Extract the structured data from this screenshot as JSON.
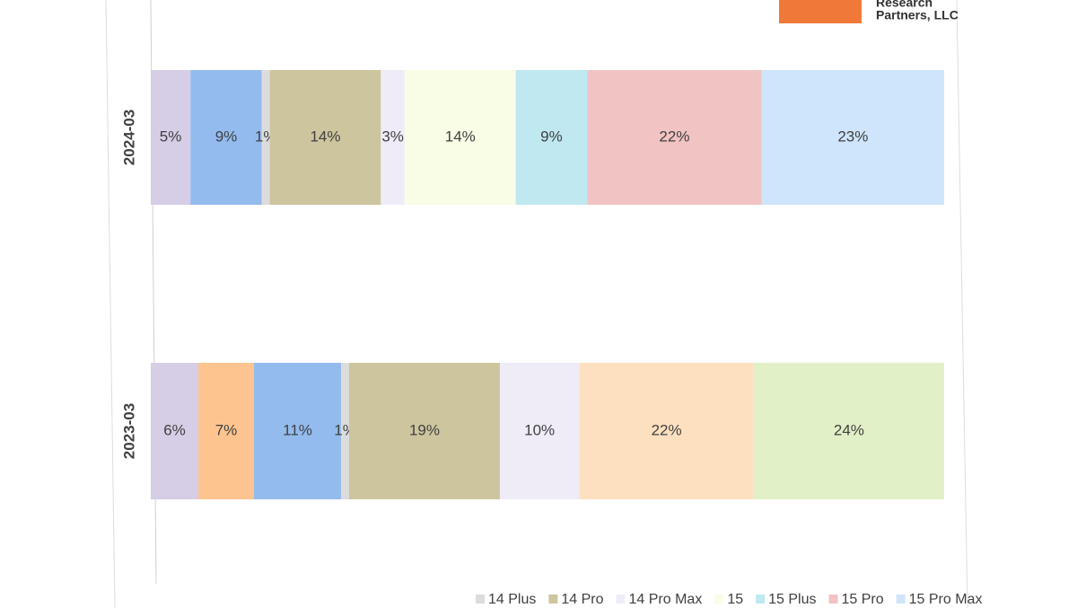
{
  "chart_data": {
    "type": "stacked-bar-horizontal",
    "categories": [
      "2024-03",
      "2023-03"
    ],
    "xlim": [
      0,
      100
    ],
    "series": [
      {
        "color": "#d6cde6",
        "values": [
          5,
          6
        ],
        "value_labels": [
          "5%",
          "6%"
        ]
      },
      {
        "color": "#fdc48f",
        "values": [
          null,
          7
        ],
        "value_labels": [
          null,
          "7%"
        ]
      },
      {
        "color": "#93bbee",
        "values": [
          9,
          11
        ],
        "value_labels": [
          "9%",
          "11%"
        ]
      },
      {
        "name": "14 Plus",
        "color": "#dcdcdc",
        "values": [
          1,
          1
        ],
        "value_labels": [
          "1%",
          "1%"
        ]
      },
      {
        "name": "14 Pro",
        "color": "#cdc59e",
        "values": [
          14,
          19
        ],
        "value_labels": [
          "14%",
          "19%"
        ]
      },
      {
        "name": "14 Pro Max",
        "color": "#efecf8",
        "values": [
          3,
          10
        ],
        "value_labels": [
          "3%",
          "10%"
        ]
      },
      {
        "name": "15",
        "color": "#f9fde6",
        "values": [
          14,
          null
        ],
        "value_labels": [
          "14%",
          null
        ]
      },
      {
        "name": "15 Plus",
        "color": "#bfe8f1",
        "values": [
          9,
          null
        ],
        "value_labels": [
          "9%",
          null
        ]
      },
      {
        "name": "15 Pro",
        "color": "#f2c3c3",
        "values": [
          22,
          null
        ],
        "value_labels": [
          "22%",
          null
        ]
      },
      {
        "name": "15 Pro Max",
        "color": "#cfe5fb",
        "values": [
          23,
          null
        ],
        "value_labels": [
          "23%",
          null
        ]
      },
      {
        "color": "#fde0c0",
        "values": [
          null,
          22
        ],
        "value_labels": [
          null,
          "22%"
        ]
      },
      {
        "color": "#e2f0c8",
        "values": [
          null,
          24
        ],
        "value_labels": [
          null,
          "24%"
        ]
      }
    ]
  },
  "logo": {
    "lines": [
      "Research",
      "Partners, LLC"
    ]
  }
}
